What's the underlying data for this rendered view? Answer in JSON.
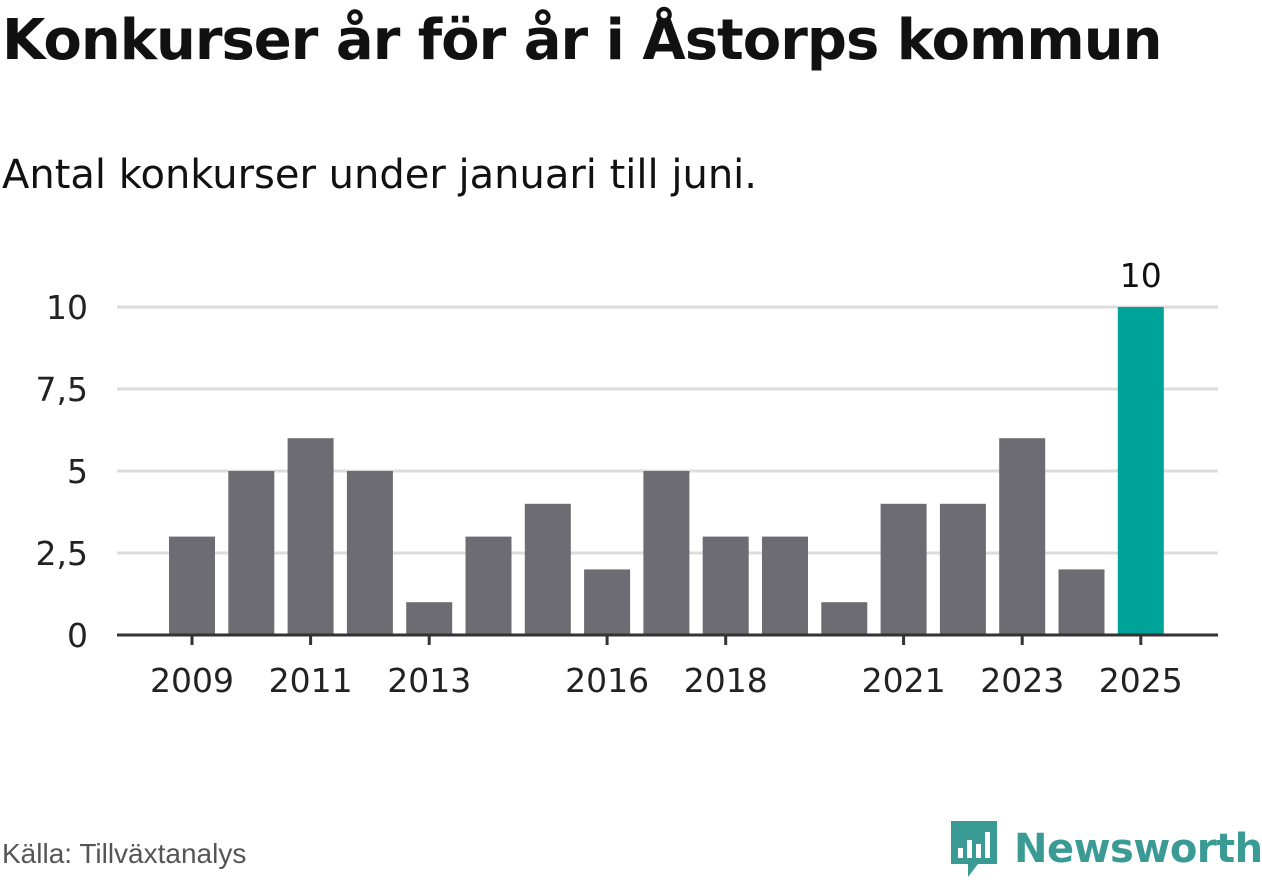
{
  "title": "Konkurser år för år i Åstorps kommun",
  "subtitle": "Antal konkurser under januari till juni.",
  "source": "Källa: Tillväxtanalys",
  "brand": {
    "name": "Newsworthy",
    "color": "#3a9b95",
    "icon": "newsworthy-logo-icon"
  },
  "chart_data": {
    "type": "bar",
    "categories": [
      "2009",
      "2010",
      "2011",
      "2012",
      "2013",
      "2014",
      "2015",
      "2016",
      "2017",
      "2018",
      "2019",
      "2020",
      "2021",
      "2022",
      "2023",
      "2024",
      "2025"
    ],
    "values": [
      3,
      5,
      6,
      5,
      1,
      3,
      4,
      2,
      5,
      3,
      3,
      1,
      4,
      4,
      6,
      2,
      10
    ],
    "x_tick_labels": [
      "2009",
      "2011",
      "2013",
      "2016",
      "2018",
      "2021",
      "2023",
      "2025"
    ],
    "y_ticks": [
      0,
      2.5,
      5,
      7.5,
      10
    ],
    "y_tick_labels": [
      "0",
      "2,5",
      "5",
      "7,5",
      "10"
    ],
    "ylim": [
      0,
      10
    ],
    "grid": true,
    "highlight": {
      "category": "2025",
      "label": "10",
      "color": "#00a398"
    },
    "bar_color": "#6d6c72"
  }
}
